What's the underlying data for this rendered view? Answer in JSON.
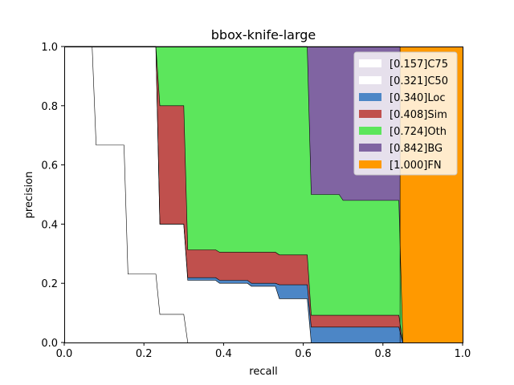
{
  "chart_data": {
    "type": "area",
    "title": "bbox-knife-large",
    "xlabel": "recall",
    "ylabel": "precision",
    "xlim": [
      0,
      1
    ],
    "ylim": [
      0,
      1
    ],
    "xticks": [
      "0.0",
      "0.2",
      "0.4",
      "0.6",
      "0.8",
      "1.0"
    ],
    "yticks": [
      "0.0",
      "0.2",
      "0.4",
      "0.6",
      "0.8",
      "1.0"
    ],
    "grid": false,
    "legend_position": "top-right",
    "series": [
      {
        "name": "[0.157]C75",
        "color": "#ffffff",
        "points": [
          [
            0,
            1
          ],
          [
            0.07,
            1
          ],
          [
            0.08,
            0.667
          ],
          [
            0.15,
            0.667
          ],
          [
            0.16,
            0.231
          ],
          [
            0.23,
            0.231
          ],
          [
            0.24,
            0.095
          ],
          [
            0.3,
            0.095
          ],
          [
            0.31,
            0
          ],
          [
            1,
            0
          ]
        ]
      },
      {
        "name": "[0.321]C50",
        "color": "#ffffff",
        "points": [
          [
            0,
            1
          ],
          [
            0.23,
            1
          ],
          [
            0.24,
            0.4
          ],
          [
            0.3,
            0.4
          ],
          [
            0.31,
            0.21
          ],
          [
            0.38,
            0.21
          ],
          [
            0.39,
            0.2
          ],
          [
            0.46,
            0.2
          ],
          [
            0.47,
            0.19
          ],
          [
            0.53,
            0.19
          ],
          [
            0.54,
            0.148
          ],
          [
            0.61,
            0.148
          ],
          [
            0.62,
            0
          ],
          [
            1,
            0
          ]
        ]
      },
      {
        "name": "[0.340]Loc",
        "color": "#4c86c6",
        "points": [
          [
            0,
            1
          ],
          [
            0.23,
            1
          ],
          [
            0.24,
            0.4
          ],
          [
            0.3,
            0.4
          ],
          [
            0.31,
            0.219
          ],
          [
            0.38,
            0.219
          ],
          [
            0.39,
            0.21
          ],
          [
            0.46,
            0.21
          ],
          [
            0.47,
            0.2
          ],
          [
            0.53,
            0.2
          ],
          [
            0.54,
            0.195
          ],
          [
            0.61,
            0.195
          ],
          [
            0.62,
            0.052
          ],
          [
            0.84,
            0.052
          ],
          [
            0.85,
            0
          ],
          [
            1,
            0
          ]
        ]
      },
      {
        "name": "[0.408]Sim",
        "color": "#c0504d",
        "points": [
          [
            0,
            1
          ],
          [
            0.23,
            1
          ],
          [
            0.24,
            0.8
          ],
          [
            0.3,
            0.8
          ],
          [
            0.31,
            0.313
          ],
          [
            0.38,
            0.313
          ],
          [
            0.39,
            0.305
          ],
          [
            0.53,
            0.305
          ],
          [
            0.54,
            0.296
          ],
          [
            0.61,
            0.296
          ],
          [
            0.62,
            0.092
          ],
          [
            0.84,
            0.092
          ],
          [
            0.85,
            0
          ],
          [
            1,
            0
          ]
        ]
      },
      {
        "name": "[0.724]Oth",
        "color": "#5ce65c",
        "points": [
          [
            0,
            1
          ],
          [
            0.61,
            1
          ],
          [
            0.62,
            0.5
          ],
          [
            0.69,
            0.5
          ],
          [
            0.7,
            0.48
          ],
          [
            0.84,
            0.48
          ],
          [
            0.85,
            0
          ],
          [
            1,
            0
          ]
        ]
      },
      {
        "name": "[0.842]BG",
        "color": "#8064a2",
        "points": [
          [
            0,
            1
          ],
          [
            0.843,
            1
          ],
          [
            0.843,
            0
          ],
          [
            1,
            0
          ]
        ]
      },
      {
        "name": "[1.000]FN",
        "color": "#ff9900",
        "points": [
          [
            0,
            1
          ],
          [
            1,
            1
          ],
          [
            1,
            0
          ]
        ]
      }
    ]
  }
}
